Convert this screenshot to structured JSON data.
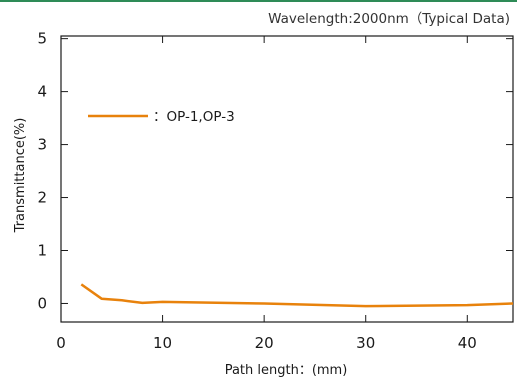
{
  "colors": {
    "top_rule": "#2e8b57",
    "series_line": "#e8820c",
    "axis": "#1a1a1a"
  },
  "chart_data": {
    "type": "line",
    "title": "",
    "subtitle": "Wavelength:2000nm（Typical Data)",
    "xlabel": "Path length：(mm)",
    "ylabel": "Transmittance(%)",
    "xlim": [
      0,
      44.5
    ],
    "ylim": [
      -0.35,
      5.05
    ],
    "xticks": [
      0,
      10,
      20,
      30,
      40
    ],
    "yticks": [
      0,
      1,
      2,
      3,
      4,
      5
    ],
    "grid": false,
    "legend_position": "top-left",
    "series": [
      {
        "name": "：OP-1,OP-3",
        "color": "#e8820c",
        "x": [
          2,
          4,
          6,
          8,
          10,
          20,
          30,
          40,
          44.5
        ],
        "y": [
          0.36,
          0.09,
          0.06,
          0.01,
          0.03,
          0.0,
          -0.05,
          -0.03,
          0.0
        ]
      }
    ]
  }
}
